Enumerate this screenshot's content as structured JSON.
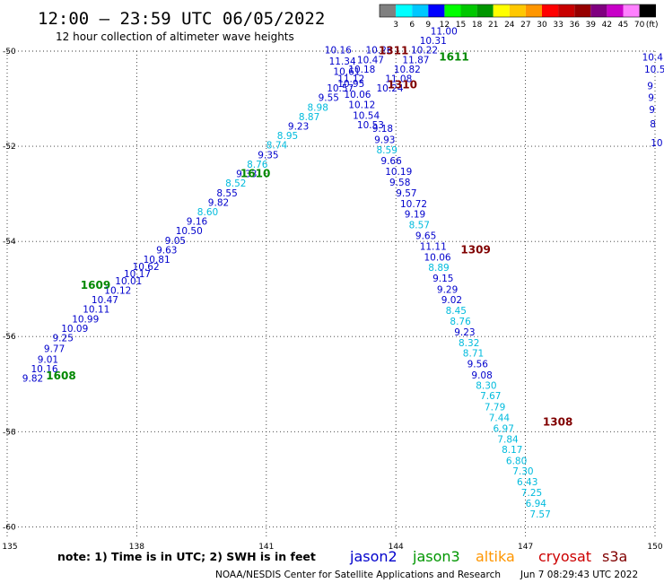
{
  "header": {
    "title": "12:00 – 23:59 UTC 06/05/2022",
    "subtitle": "12 hour collection of altimeter wave heights"
  },
  "color_scale": {
    "colors": [
      "#808080",
      "#00ffff",
      "#00c8ff",
      "#0000ff",
      "#00ff00",
      "#00c800",
      "#009600",
      "#ffff00",
      "#ffc800",
      "#ff9600",
      "#ff0000",
      "#c80000",
      "#960000",
      "#800080",
      "#c800c8",
      "#ff80ff",
      "#000000"
    ],
    "labels": [
      "3",
      "6",
      "9",
      "12",
      "15",
      "18",
      "21",
      "24",
      "27",
      "30",
      "33",
      "36",
      "39",
      "42",
      "45",
      "70",
      "(ft)"
    ]
  },
  "footer": {
    "note": "note: 1) Time is in UTC; 2) SWH is in feet",
    "legend": [
      {
        "name": "jason2",
        "color": "#0000cc"
      },
      {
        "name": "jason3",
        "color": "#009600"
      },
      {
        "name": "altika",
        "color": "#ff9600"
      },
      {
        "name": "cryosat",
        "color": "#cc0000"
      },
      {
        "name": "s3a",
        "color": "#800000"
      }
    ],
    "credit": "NOAA/NESDIS Center for Satellite Applications and Research",
    "timestamp": "Jun  7 08:29:43 UTC 2022"
  },
  "chart_data": {
    "type": "scatter",
    "xlim": [
      135,
      150
    ],
    "ylim": [
      -60.2,
      -50
    ],
    "xticks": [
      135,
      138,
      141,
      144,
      147,
      150
    ],
    "yticks": [
      -50,
      -52,
      -54,
      -56,
      -58,
      -60
    ],
    "grid": true,
    "value_colors": {
      "dark": "#0000cc",
      "light": "#00bbdd"
    },
    "pass_colors": {
      "jason3": "#008800",
      "s3a": "#800000"
    },
    "pass_labels": [
      {
        "text": "1608",
        "x": 135.9,
        "y": -56.9,
        "mission": "jason3"
      },
      {
        "text": "1609",
        "x": 136.7,
        "y": -55.0,
        "mission": "jason3"
      },
      {
        "text": "1610",
        "x": 140.4,
        "y": -52.65,
        "mission": "jason3"
      },
      {
        "text": "1611",
        "x": 145.0,
        "y": -50.2,
        "mission": "jason3"
      },
      {
        "text": "1311",
        "x": 143.6,
        "y": -50.07,
        "mission": "s3a"
      },
      {
        "text": "1310",
        "x": 143.8,
        "y": -50.78,
        "mission": "s3a"
      },
      {
        "text": "1309",
        "x": 145.5,
        "y": -54.25,
        "mission": "s3a"
      },
      {
        "text": "1308",
        "x": 147.4,
        "y": -57.87,
        "mission": "s3a"
      }
    ],
    "series": [
      {
        "name": "1608",
        "points": [
          {
            "x": 135.35,
            "y": -56.95,
            "v": "9.82",
            "c": "dark"
          },
          {
            "x": 135.55,
            "y": -56.75,
            "v": "10.16",
            "c": "dark"
          },
          {
            "x": 135.7,
            "y": -56.55,
            "v": "9.01",
            "c": "dark"
          },
          {
            "x": 135.85,
            "y": -56.33,
            "v": "9.77",
            "c": "dark"
          },
          {
            "x": 136.05,
            "y": -56.1,
            "v": "9.25",
            "c": "dark"
          }
        ]
      },
      {
        "name": "1609",
        "points": [
          {
            "x": 136.25,
            "y": -55.9,
            "v": "10.09",
            "c": "dark"
          },
          {
            "x": 136.5,
            "y": -55.7,
            "v": "10.99",
            "c": "dark"
          },
          {
            "x": 136.75,
            "y": -55.5,
            "v": "10.11",
            "c": "dark"
          },
          {
            "x": 136.95,
            "y": -55.3,
            "v": "10.47",
            "c": "dark"
          },
          {
            "x": 137.25,
            "y": -55.1,
            "v": "10.12",
            "c": "dark"
          },
          {
            "x": 137.5,
            "y": -54.9,
            "v": "10.01",
            "c": "dark"
          },
          {
            "x": 137.7,
            "y": -54.75,
            "v": "10.17",
            "c": "dark"
          },
          {
            "x": 137.9,
            "y": -54.6,
            "v": "10.62",
            "c": "dark"
          },
          {
            "x": 138.15,
            "y": -54.45,
            "v": "10.81",
            "c": "dark"
          },
          {
            "x": 138.45,
            "y": -54.25,
            "v": "9.63",
            "c": "dark"
          },
          {
            "x": 138.65,
            "y": -54.05,
            "v": "9.05",
            "c": "dark"
          },
          {
            "x": 138.9,
            "y": -53.85,
            "v": "10.50",
            "c": "dark"
          },
          {
            "x": 139.15,
            "y": -53.65,
            "v": "9.16",
            "c": "dark"
          },
          {
            "x": 139.4,
            "y": -53.45,
            "v": "8.60",
            "c": "light"
          },
          {
            "x": 139.65,
            "y": -53.25,
            "v": "9.82",
            "c": "dark"
          },
          {
            "x": 139.85,
            "y": -53.05,
            "v": "8.55",
            "c": "dark"
          },
          {
            "x": 140.05,
            "y": -52.85,
            "v": "8.52",
            "c": "light"
          },
          {
            "x": 140.3,
            "y": -52.65,
            "v": "9.33",
            "c": "dark"
          }
        ]
      },
      {
        "name": "1610",
        "points": [
          {
            "x": 140.55,
            "y": -52.45,
            "v": "8.76",
            "c": "light"
          },
          {
            "x": 140.8,
            "y": -52.25,
            "v": "9.35",
            "c": "dark"
          },
          {
            "x": 141.0,
            "y": -52.05,
            "v": "8.74",
            "c": "light"
          },
          {
            "x": 141.25,
            "y": -51.85,
            "v": "8.95",
            "c": "light"
          },
          {
            "x": 141.5,
            "y": -51.65,
            "v": "9.23",
            "c": "dark"
          },
          {
            "x": 141.75,
            "y": -51.45,
            "v": "8.87",
            "c": "light"
          },
          {
            "x": 141.95,
            "y": -51.25,
            "v": "8.98",
            "c": "light"
          },
          {
            "x": 142.2,
            "y": -51.05,
            "v": "9.55",
            "c": "dark"
          },
          {
            "x": 142.4,
            "y": -50.85,
            "v": "10.57",
            "c": "dark"
          },
          {
            "x": 142.65,
            "y": -50.65,
            "v": "11.12",
            "c": "dark"
          },
          {
            "x": 142.9,
            "y": -50.45,
            "v": "10.18",
            "c": "dark"
          },
          {
            "x": 143.1,
            "y": -50.25,
            "v": "10.47",
            "c": "dark"
          },
          {
            "x": 143.3,
            "y": -50.05,
            "v": "10.26",
            "c": "dark"
          }
        ]
      },
      {
        "name": "1611",
        "points": [
          {
            "x": 143.55,
            "y": -50.85,
            "v": "10.24",
            "c": "dark"
          },
          {
            "x": 143.75,
            "y": -50.65,
            "v": "11.08",
            "c": "dark"
          },
          {
            "x": 143.95,
            "y": -50.45,
            "v": "10.82",
            "c": "dark"
          },
          {
            "x": 144.15,
            "y": -50.25,
            "v": "11.87",
            "c": "dark"
          },
          {
            "x": 144.35,
            "y": -50.05,
            "v": "10.22",
            "c": "dark"
          },
          {
            "x": 144.55,
            "y": -49.85,
            "v": "10.31",
            "c": "dark"
          },
          {
            "x": 144.8,
            "y": -49.65,
            "v": "11.00",
            "c": "dark"
          }
        ]
      },
      {
        "name": "1311",
        "points": [
          {
            "x": 142.35,
            "y": -50.05,
            "v": "10.16",
            "c": "dark"
          },
          {
            "x": 142.45,
            "y": -50.28,
            "v": "11.34",
            "c": "dark"
          },
          {
            "x": 142.55,
            "y": -50.5,
            "v": "10.61",
            "c": "dark"
          },
          {
            "x": 142.65,
            "y": -50.75,
            "v": "10.95",
            "c": "dark"
          },
          {
            "x": 142.8,
            "y": -50.98,
            "v": "10.06",
            "c": "dark"
          },
          {
            "x": 142.9,
            "y": -51.2,
            "v": "10.12",
            "c": "dark"
          },
          {
            "x": 143.0,
            "y": -51.42,
            "v": "10.54",
            "c": "dark"
          },
          {
            "x": 143.1,
            "y": -51.62,
            "v": "10.53",
            "c": "dark"
          }
        ]
      },
      {
        "name": "1309",
        "points": [
          {
            "x": 143.45,
            "y": -51.7,
            "v": "9.18",
            "c": "dark"
          },
          {
            "x": 143.5,
            "y": -51.93,
            "v": "9.93",
            "c": "dark"
          },
          {
            "x": 143.55,
            "y": -52.15,
            "v": "8.59",
            "c": "light"
          },
          {
            "x": 143.65,
            "y": -52.38,
            "v": "9.66",
            "c": "dark"
          },
          {
            "x": 143.75,
            "y": -52.6,
            "v": "10.19",
            "c": "dark"
          },
          {
            "x": 143.85,
            "y": -52.83,
            "v": "9.58",
            "c": "dark"
          },
          {
            "x": 144.0,
            "y": -53.05,
            "v": "9.57",
            "c": "dark"
          },
          {
            "x": 144.1,
            "y": -53.28,
            "v": "10.72",
            "c": "dark"
          },
          {
            "x": 144.2,
            "y": -53.5,
            "v": "9.19",
            "c": "dark"
          },
          {
            "x": 144.3,
            "y": -53.72,
            "v": "8.57",
            "c": "light"
          },
          {
            "x": 144.45,
            "y": -53.95,
            "v": "9.65",
            "c": "dark"
          },
          {
            "x": 144.55,
            "y": -54.18,
            "v": "11.11",
            "c": "dark"
          },
          {
            "x": 144.65,
            "y": -54.4,
            "v": "10.06",
            "c": "dark"
          },
          {
            "x": 144.75,
            "y": -54.62,
            "v": "8.89",
            "c": "light"
          },
          {
            "x": 144.85,
            "y": -54.85,
            "v": "9.15",
            "c": "dark"
          },
          {
            "x": 144.95,
            "y": -55.08,
            "v": "9.29",
            "c": "dark"
          },
          {
            "x": 145.05,
            "y": -55.3,
            "v": "9.02",
            "c": "dark"
          },
          {
            "x": 145.15,
            "y": -55.52,
            "v": "8.45",
            "c": "light"
          },
          {
            "x": 145.25,
            "y": -55.75,
            "v": "8.76",
            "c": "light"
          },
          {
            "x": 145.35,
            "y": -55.98,
            "v": "9.23",
            "c": "dark"
          },
          {
            "x": 145.45,
            "y": -56.2,
            "v": "8.32",
            "c": "light"
          },
          {
            "x": 145.55,
            "y": -56.42,
            "v": "8.71",
            "c": "light"
          },
          {
            "x": 145.65,
            "y": -56.65,
            "v": "9.56",
            "c": "dark"
          },
          {
            "x": 145.75,
            "y": -56.88,
            "v": "9.08",
            "c": "dark"
          },
          {
            "x": 145.85,
            "y": -57.1,
            "v": "8.30",
            "c": "light"
          },
          {
            "x": 145.95,
            "y": -57.32,
            "v": "7.67",
            "c": "light"
          },
          {
            "x": 146.05,
            "y": -57.55,
            "v": "7.79",
            "c": "light"
          },
          {
            "x": 146.15,
            "y": -57.78,
            "v": "7.44",
            "c": "light"
          }
        ]
      },
      {
        "name": "1308",
        "points": [
          {
            "x": 146.25,
            "y": -58.0,
            "v": "6.97",
            "c": "light"
          },
          {
            "x": 146.35,
            "y": -58.23,
            "v": "7.84",
            "c": "light"
          },
          {
            "x": 146.45,
            "y": -58.45,
            "v": "8.17",
            "c": "light"
          },
          {
            "x": 146.55,
            "y": -58.68,
            "v": "6.80",
            "c": "light"
          },
          {
            "x": 146.7,
            "y": -58.9,
            "v": "7.30",
            "c": "light"
          },
          {
            "x": 146.8,
            "y": -59.13,
            "v": "6.43",
            "c": "light"
          },
          {
            "x": 146.9,
            "y": -59.35,
            "v": "7.25",
            "c": "light"
          },
          {
            "x": 147.0,
            "y": -59.58,
            "v": "6.94",
            "c": "light"
          },
          {
            "x": 147.1,
            "y": -59.8,
            "v": "7.57",
            "c": "light"
          }
        ]
      },
      {
        "name": "edge",
        "points": [
          {
            "x": 149.7,
            "y": -50.2,
            "v": "10.4",
            "c": "dark"
          },
          {
            "x": 149.75,
            "y": -50.45,
            "v": "10.5",
            "c": "dark"
          },
          {
            "x": 149.82,
            "y": -50.8,
            "v": "9",
            "c": "dark"
          },
          {
            "x": 149.84,
            "y": -51.05,
            "v": "9",
            "c": "dark"
          },
          {
            "x": 149.86,
            "y": -51.3,
            "v": "9",
            "c": "dark"
          },
          {
            "x": 149.88,
            "y": -51.6,
            "v": "8",
            "c": "dark"
          },
          {
            "x": 149.9,
            "y": -52.0,
            "v": "10",
            "c": "dark"
          }
        ]
      }
    ]
  }
}
